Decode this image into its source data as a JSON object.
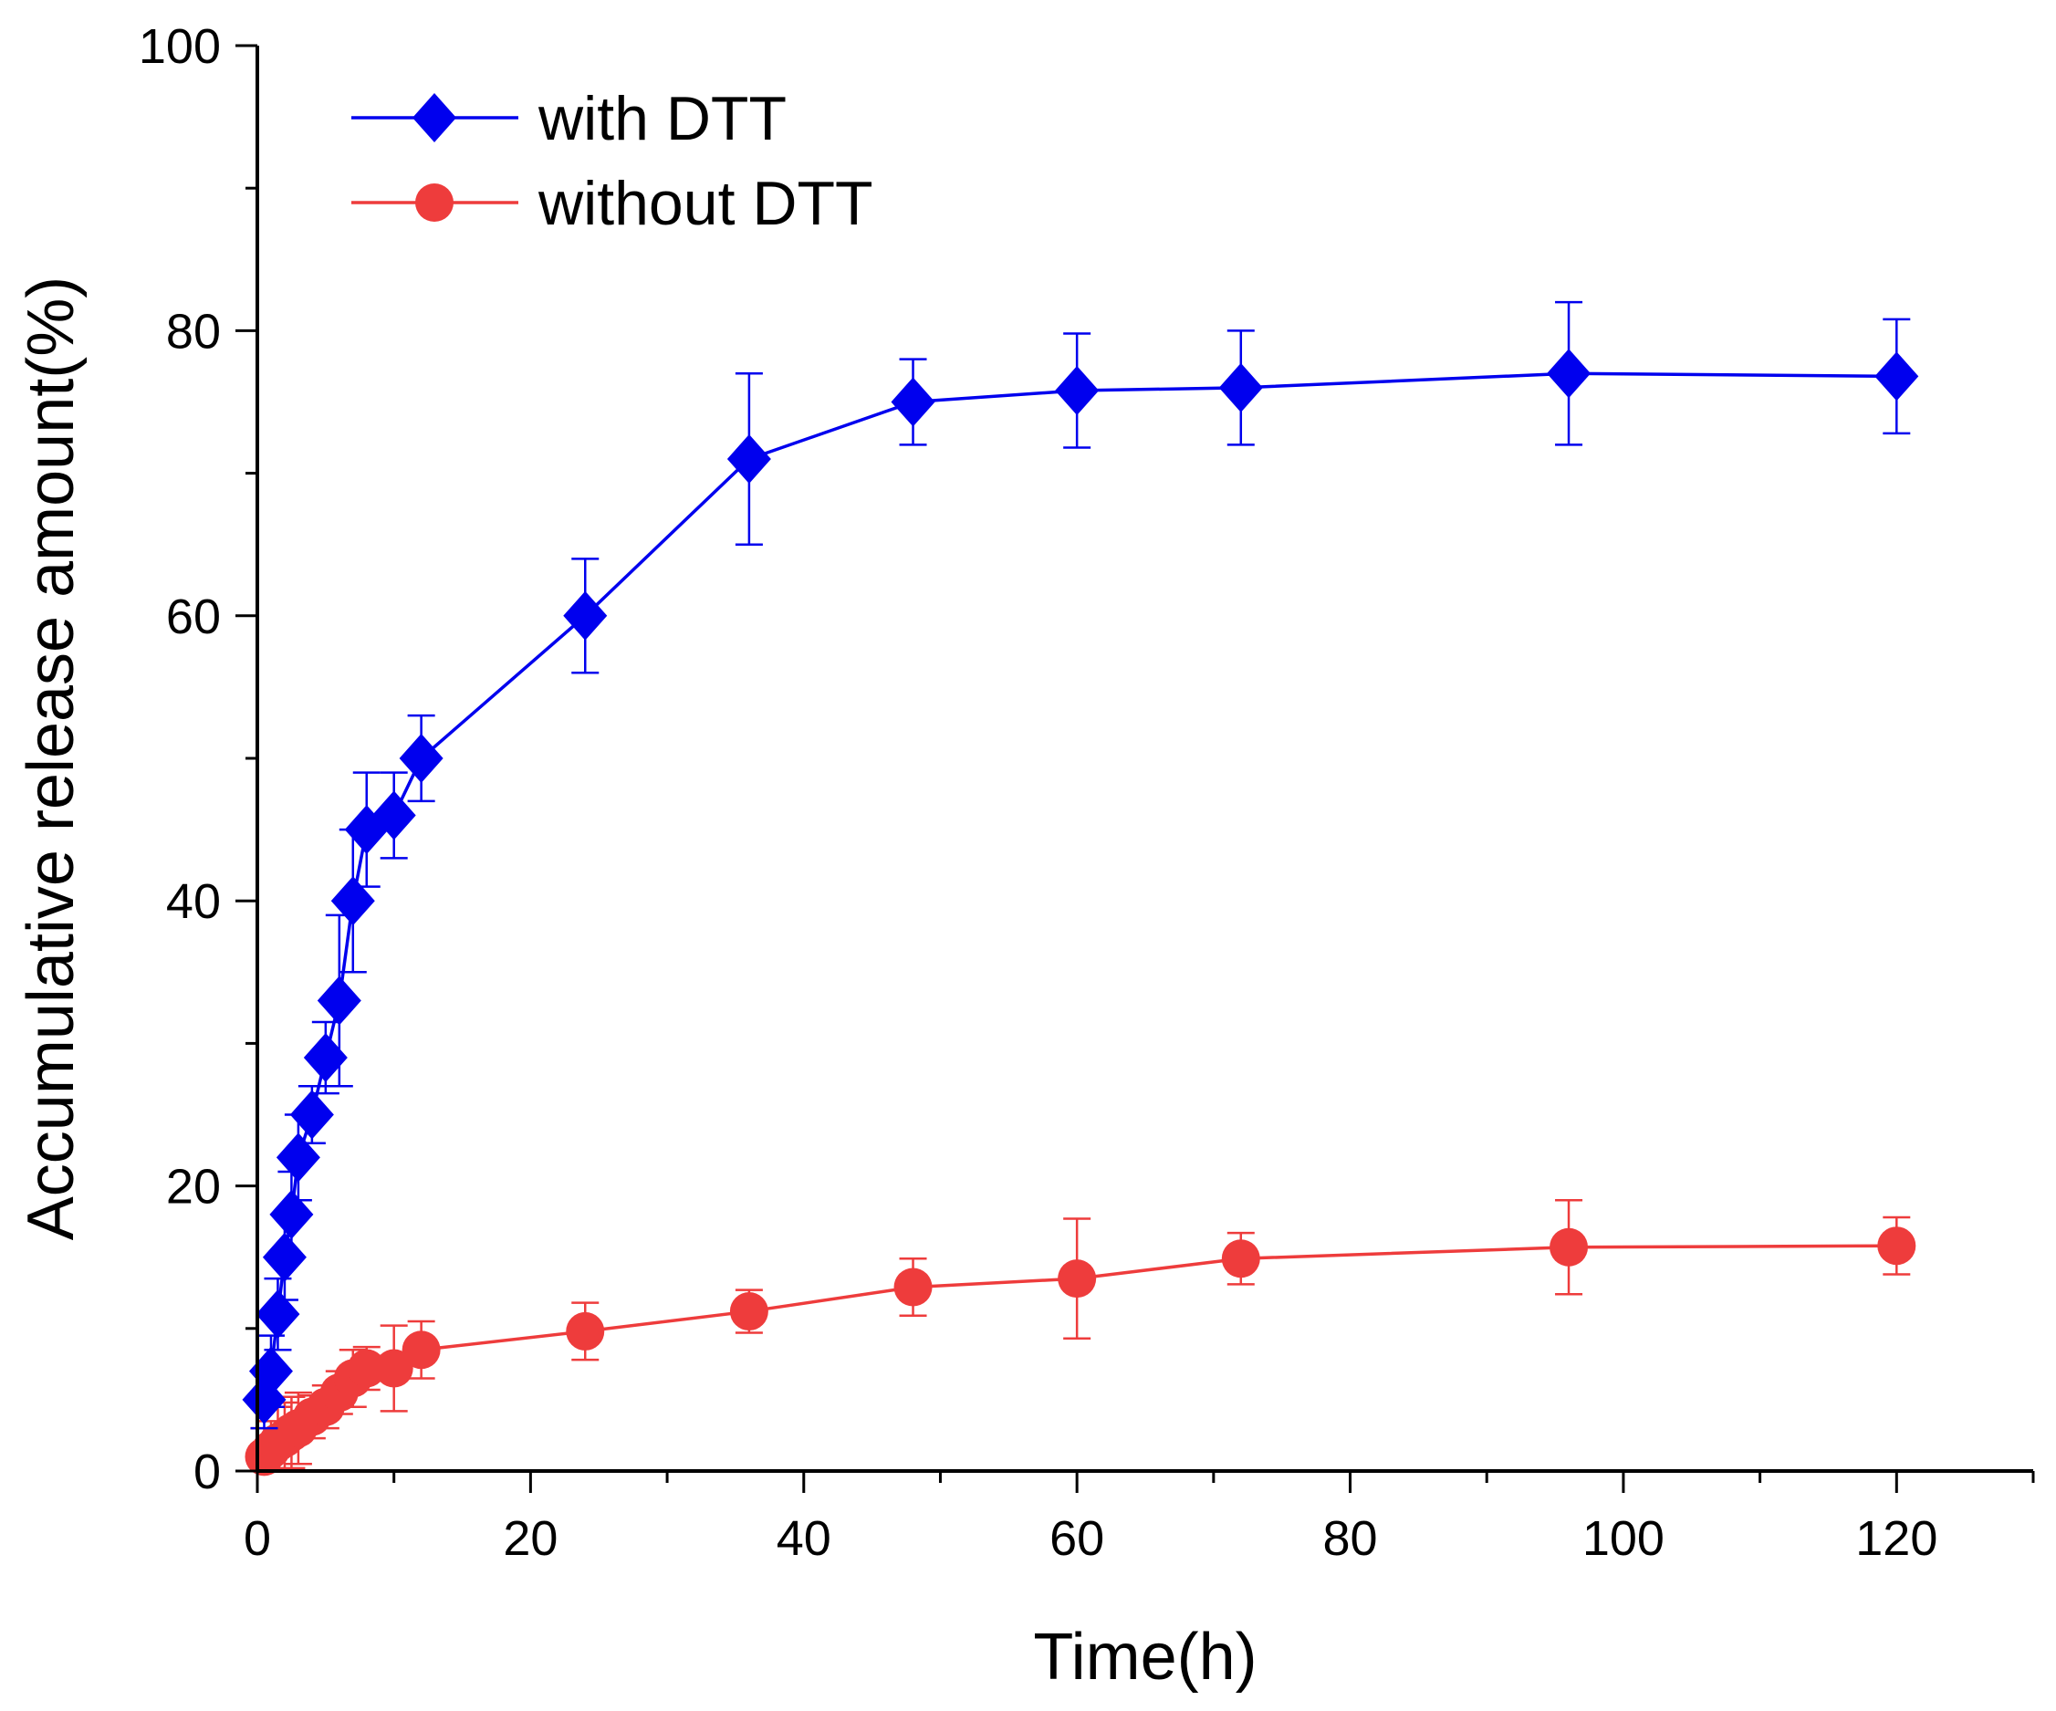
{
  "chart_data": {
    "type": "line",
    "title": "",
    "xlabel": "Time(h)",
    "ylabel": "Accumulative release amount(%)",
    "xlim": [
      0,
      130
    ],
    "ylim": [
      0,
      100
    ],
    "xticks": [
      0,
      20,
      40,
      60,
      80,
      100,
      120
    ],
    "yticks": [
      0,
      20,
      40,
      60,
      80,
      100
    ],
    "x_minor_step": 10,
    "y_minor_step": 10,
    "grid": false,
    "legend_position": "top-left",
    "series": [
      {
        "name": "with DTT",
        "color": "#0000ee",
        "marker": "diamond",
        "x": [
          0.5,
          1,
          1.5,
          2,
          2.5,
          3,
          4,
          5,
          6,
          7,
          8,
          10,
          12,
          24,
          36,
          48,
          60,
          72,
          96,
          120
        ],
        "y": [
          5,
          7,
          11,
          15,
          18,
          22,
          25,
          29,
          33,
          40,
          45,
          46,
          50,
          60,
          71,
          75,
          75.8,
          76,
          77,
          76.8
        ],
        "err": [
          2,
          2.5,
          2.5,
          3,
          3,
          3,
          2,
          2.5,
          6,
          5,
          4,
          3,
          3,
          4,
          6,
          3,
          4,
          4,
          5,
          4
        ]
      },
      {
        "name": "without DTT",
        "color": "#ee3c3c",
        "marker": "circle",
        "x": [
          0.5,
          1,
          1.5,
          2,
          2.5,
          3,
          4,
          5,
          6,
          7,
          8,
          10,
          12,
          24,
          36,
          48,
          60,
          72,
          96,
          120
        ],
        "y": [
          1,
          1.5,
          2,
          2.3,
          2.7,
          3,
          3.8,
          4.5,
          5.5,
          6.5,
          7.2,
          7.2,
          8.5,
          9.8,
          11.2,
          12.9,
          13.5,
          14.9,
          15.7,
          15.8
        ],
        "err": [
          2,
          2,
          2.5,
          2.5,
          2.5,
          2.5,
          1.5,
          1.5,
          1.5,
          2,
          1.5,
          3,
          2,
          2,
          1.5,
          2,
          4.2,
          1.8,
          3.3,
          2
        ]
      }
    ]
  }
}
